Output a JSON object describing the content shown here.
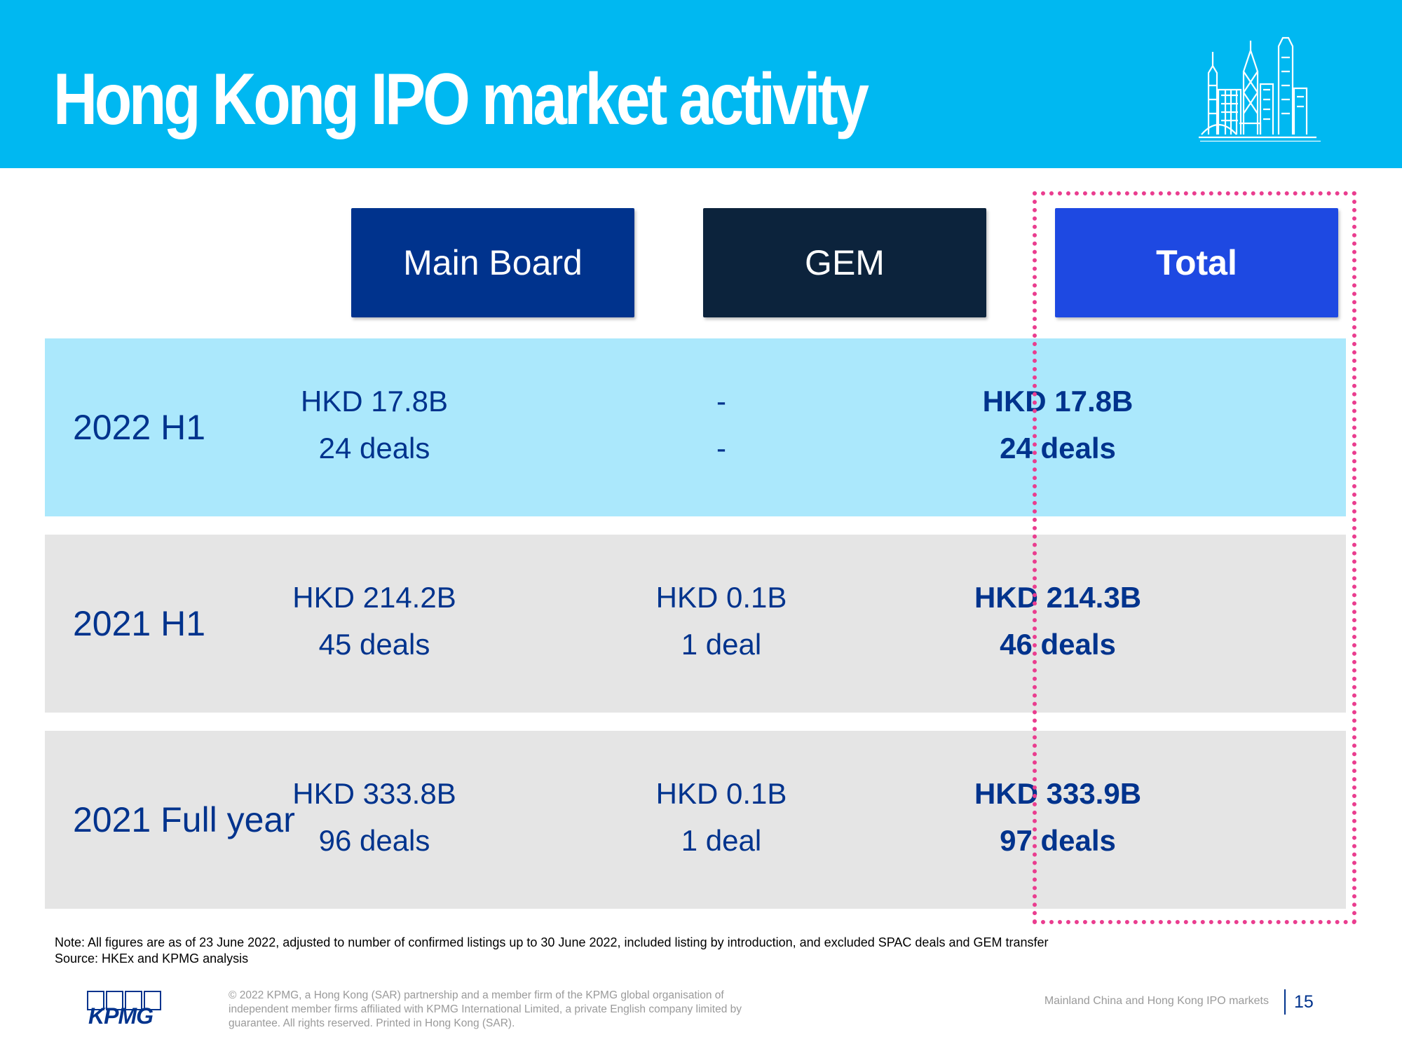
{
  "header": {
    "title": "Hong Kong IPO market activity",
    "skyline_icon": "hong-kong-skyline-icon",
    "background_color": "#00b8f1"
  },
  "columns": {
    "main_board": "Main Board",
    "gem": "GEM",
    "total": "Total"
  },
  "rows": [
    {
      "label": "2022 H1",
      "main_board": {
        "amount": "HKD 17.8B",
        "deals": "24 deals"
      },
      "gem": {
        "amount": "-",
        "deals": "-"
      },
      "total": {
        "amount": "HKD 17.8B",
        "deals": "24 deals"
      }
    },
    {
      "label": "2021 H1",
      "main_board": {
        "amount": "HKD 214.2B",
        "deals": "45 deals"
      },
      "gem": {
        "amount": "HKD 0.1B",
        "deals": "1 deal"
      },
      "total": {
        "amount": "HKD 214.3B",
        "deals": "46 deals"
      }
    },
    {
      "label": "2021 Full year",
      "main_board": {
        "amount": "HKD 333.8B",
        "deals": "96 deals"
      },
      "gem": {
        "amount": "HKD 0.1B",
        "deals": "1 deal"
      },
      "total": {
        "amount": "HKD 333.9B",
        "deals": "97 deals"
      }
    }
  ],
  "note": {
    "line1": "Note: All figures are as of 23 June 2022, adjusted to number of confirmed listings up to 30 June 2022, included listing by introduction, and excluded SPAC deals and GEM transfer",
    "line2": "Source: HKEx and KPMG analysis"
  },
  "footer": {
    "logo_text": "KPMG",
    "copyright": "© 2022 KPMG, a Hong Kong (SAR) partnership and a member firm of the KPMG global organisation of independent member firms affiliated with KPMG International Limited, a private English company limited by guarantee. All rights reserved. Printed in Hong Kong (SAR).",
    "doc_title": "Mainland China and Hong Kong IPO markets",
    "page_number": "15"
  },
  "colors": {
    "main_board": "#00338d",
    "gem": "#0c233c",
    "total": "#1e49e2",
    "row_highlight": "#abe8fc",
    "row_default": "#e5e5e5",
    "dotted_border": "#ea3d8f"
  }
}
